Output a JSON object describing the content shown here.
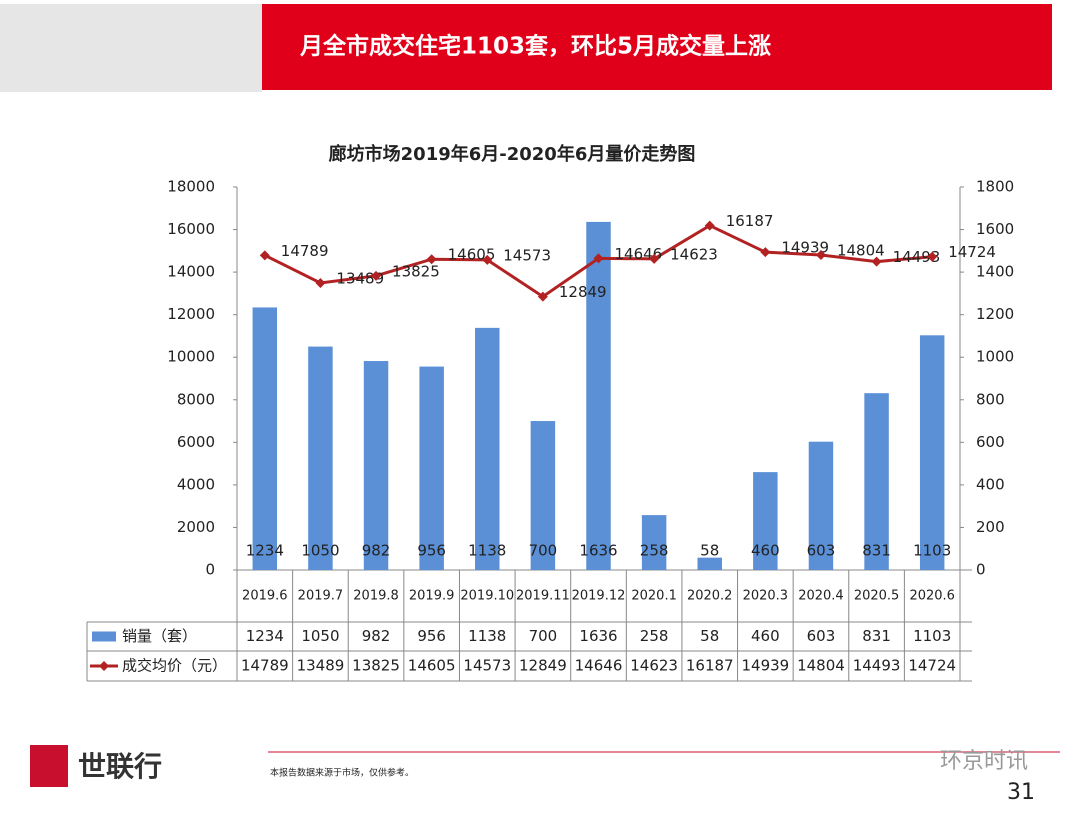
{
  "header": {
    "banner_text": "月全市成交住宅1103套，环比5月成交量上涨"
  },
  "chart_data": {
    "type": "bar-line",
    "title": "廊坊市场2019年6月-2020年6月量价走势图",
    "categories": [
      "2019.6",
      "2019.7",
      "2019.8",
      "2019.9",
      "2019.10",
      "2019.11",
      "2019.12",
      "2020.1",
      "2020.2",
      "2020.3",
      "2020.4",
      "2020.5",
      "2020.6"
    ],
    "series": [
      {
        "name": "销量（套）",
        "type": "bar",
        "axis": "y2",
        "color": "#5b8fd6",
        "values": [
          1234,
          1050,
          982,
          956,
          1138,
          700,
          1636,
          258,
          58,
          460,
          603,
          831,
          1103
        ]
      },
      {
        "name": "成交均价（元）",
        "type": "line",
        "axis": "y",
        "color": "#b22222",
        "values": [
          14789,
          13489,
          13825,
          14605,
          14573,
          12849,
          14646,
          14623,
          16187,
          14939,
          14804,
          14493,
          14724
        ]
      }
    ],
    "ylim": [
      0,
      18000
    ],
    "yticks": [
      0,
      2000,
      4000,
      6000,
      8000,
      10000,
      12000,
      14000,
      16000,
      18000
    ],
    "y2lim": [
      0,
      1800
    ],
    "y2ticks": [
      0,
      200,
      400,
      600,
      800,
      1000,
      1200,
      1400,
      1600,
      1800
    ]
  },
  "footer": {
    "brand": "世联行",
    "note": "本报告数据来源于市场，仅供参考。",
    "page": "31",
    "watermark": "环京时讯"
  }
}
